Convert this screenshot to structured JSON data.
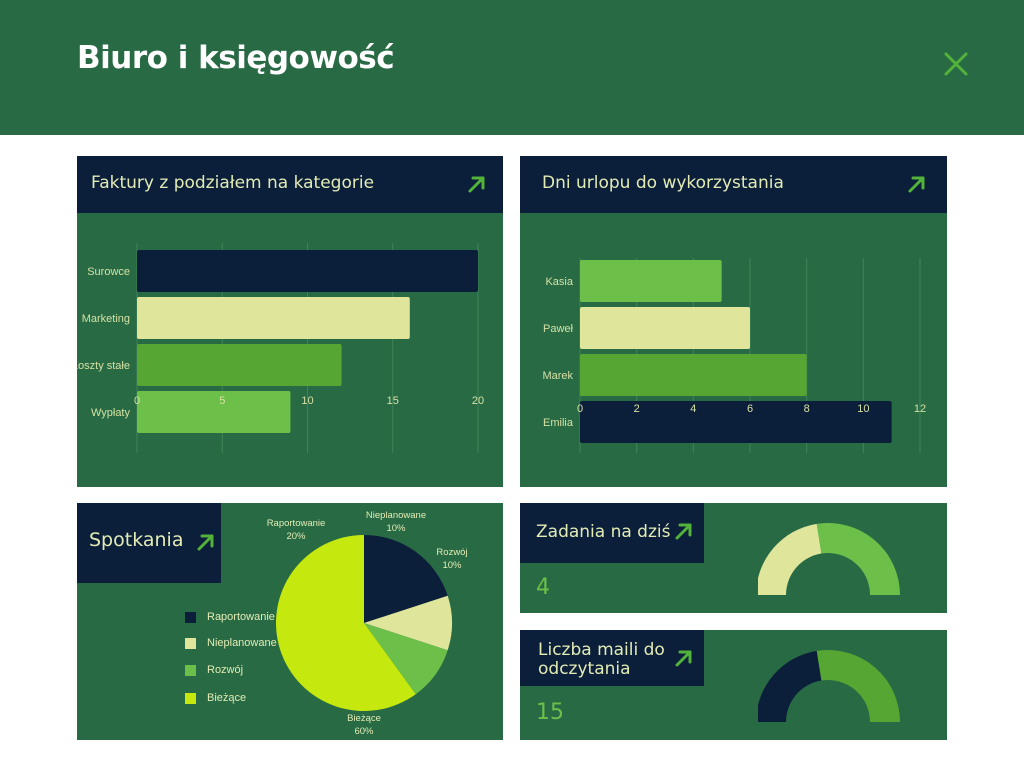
{
  "header": {
    "title": "Biuro i księgowość"
  },
  "colors": {
    "header_bg": "#286a44",
    "panel_bg": "#286a44",
    "panel_head_bg": "#0b1f3a",
    "navy": "#0b1f3a",
    "cream": "#dfe69c",
    "mid_green": "#55a632",
    "light_green": "#6cc04a",
    "lime": "#c5e80f",
    "accent": "#52b23a"
  },
  "invoices": {
    "title": "Faktury z podziałem na kategorie",
    "chart_data": {
      "type": "bar",
      "orientation": "horizontal",
      "categories": [
        "Surowce",
        "Marketing",
        "Koszty stałe",
        "Wypłaty"
      ],
      "values": [
        20,
        16,
        12,
        9
      ],
      "colors": [
        "#0b1f3a",
        "#dfe69c",
        "#55a632",
        "#6cc04a"
      ],
      "xlim": [
        0,
        20
      ],
      "xticks": [
        "0",
        "5",
        "10",
        "15",
        "20"
      ],
      "grid": true
    }
  },
  "vacation": {
    "title": "Dni urlopu do wykorzystania",
    "chart_data": {
      "type": "bar",
      "orientation": "horizontal",
      "categories": [
        "Kasia",
        "Paweł",
        "Marek",
        "Emilia"
      ],
      "values": [
        5,
        6,
        8,
        11
      ],
      "colors": [
        "#6cc04a",
        "#dfe69c",
        "#55a632",
        "#0b1f3a"
      ],
      "xlim": [
        0,
        12
      ],
      "xticks": [
        "0",
        "2",
        "4",
        "6",
        "8",
        "10",
        "12"
      ],
      "grid": true
    }
  },
  "meetings": {
    "title": "Spotkania",
    "chart_data": {
      "type": "pie",
      "slices": [
        {
          "name": "Raportowanie",
          "value": 20,
          "label": "20%",
          "color": "#0b1f3a"
        },
        {
          "name": "Nieplanowane",
          "value": 10,
          "label": "10%",
          "color": "#dfe69c"
        },
        {
          "name": "Rozwój",
          "value": 10,
          "label": "10%",
          "color": "#6cc04a"
        },
        {
          "name": "Bieżące",
          "value": 60,
          "label": "60%",
          "color": "#c5e80f"
        }
      ],
      "legend_position": "left"
    }
  },
  "tasks": {
    "title": "Zadania na dziś",
    "value": "4",
    "gauge": {
      "fraction_filled": 0.55,
      "colors": [
        "#dfe69c",
        "#6cc04a"
      ]
    }
  },
  "emails": {
    "title_line1": "Liczba maili do",
    "title_line2": "odczytania",
    "value": "15",
    "gauge": {
      "fraction_filled": 0.55,
      "colors": [
        "#0b1f3a",
        "#55a632"
      ]
    }
  }
}
